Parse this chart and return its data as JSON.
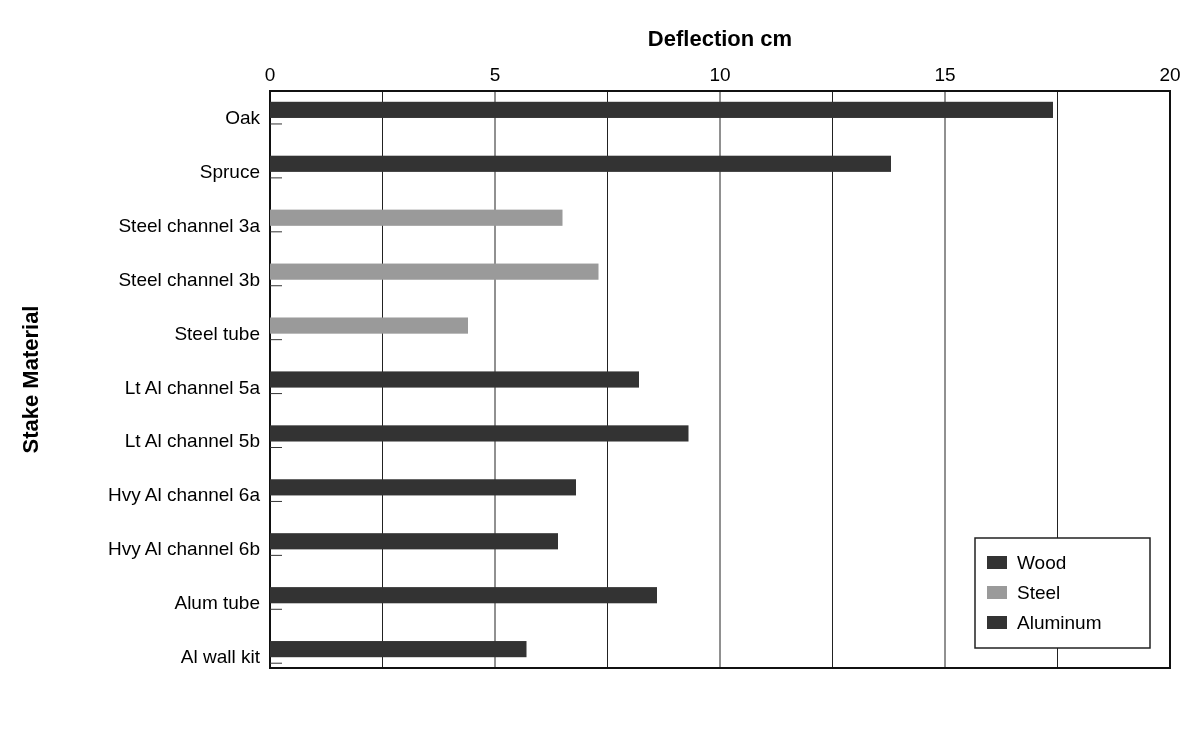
{
  "chart_data": {
    "type": "bar",
    "orientation": "horizontal",
    "xlabel": "Deflection  cm",
    "ylabel": "Stake Material",
    "categories": [
      "Oak",
      "Spruce",
      "Steel channel 3a",
      "Steel channel 3b",
      "Steel tube",
      "Lt  Al channel 5a",
      "Lt  Al channel 5b",
      "Hvy Al channel 6a",
      "Hvy Al channel 6b",
      "Alum tube",
      "Al wall kit"
    ],
    "series": [
      {
        "name": "Wood",
        "color": "#333333",
        "values": [
          17.4,
          13.8,
          null,
          null,
          null,
          null,
          null,
          null,
          null,
          null,
          null
        ]
      },
      {
        "name": "Steel",
        "color": "#9a9a9a",
        "values": [
          null,
          null,
          6.5,
          7.3,
          4.4,
          null,
          null,
          null,
          null,
          null,
          null
        ]
      },
      {
        "name": "Aluminum",
        "color": "#333333",
        "values": [
          null,
          null,
          null,
          null,
          null,
          8.2,
          9.3,
          6.8,
          6.4,
          8.6,
          5.7
        ]
      }
    ],
    "xlim": [
      0,
      20
    ],
    "xticks": [
      0,
      {
        "value": 2.5,
        "label": null
      },
      5,
      {
        "value": 7.5,
        "label": null
      },
      10,
      {
        "value": 12.5,
        "label": null
      },
      15,
      {
        "value": 17.5,
        "label": null
      },
      20
    ],
    "grid": "x",
    "legend": "bottom right"
  }
}
